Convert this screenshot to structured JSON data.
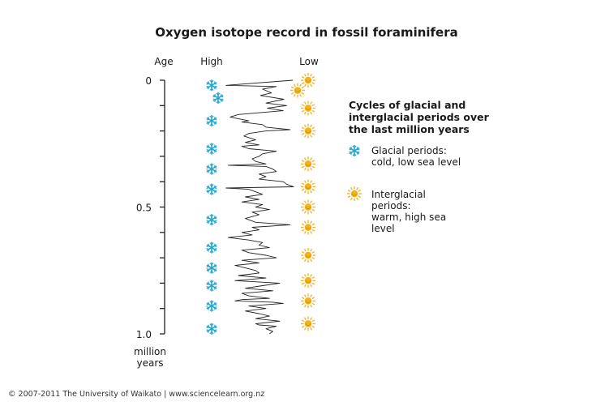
{
  "chart_data": {
    "type": "line",
    "title": "Oxygen isotope record in fossil foraminifera",
    "ylabel": "Age",
    "ylabel_unit_lines": [
      "million",
      "years"
    ],
    "y_direction": "down",
    "ylim": [
      0,
      1.0
    ],
    "y_ticks": [
      0,
      0.1,
      0.2,
      0.3,
      0.4,
      0.5,
      0.6,
      0.7,
      0.8,
      0.9,
      1.0
    ],
    "y_tick_labels": [
      {
        "value": 0,
        "label": "0"
      },
      {
        "value": 0.5,
        "label": "0.5"
      },
      {
        "value": 1.0,
        "label": "1.0"
      }
    ],
    "x_scale_labels": {
      "left": "High",
      "right": "Low"
    },
    "xlim": [
      0,
      1
    ],
    "grid": false,
    "series": [
      {
        "points": [
          [
            0.0,
            0.99
          ],
          [
            0.02,
            0.02
          ],
          [
            0.025,
            0.75
          ],
          [
            0.035,
            0.55
          ],
          [
            0.05,
            0.68
          ],
          [
            0.06,
            0.52
          ],
          [
            0.075,
            0.86
          ],
          [
            0.09,
            0.6
          ],
          [
            0.1,
            0.9
          ],
          [
            0.11,
            0.62
          ],
          [
            0.12,
            0.85
          ],
          [
            0.135,
            0.2
          ],
          [
            0.145,
            0.08
          ],
          [
            0.16,
            0.35
          ],
          [
            0.165,
            0.25
          ],
          [
            0.175,
            0.55
          ],
          [
            0.185,
            0.6
          ],
          [
            0.195,
            0.95
          ],
          [
            0.2,
            0.6
          ],
          [
            0.21,
            0.35
          ],
          [
            0.22,
            0.28
          ],
          [
            0.235,
            0.45
          ],
          [
            0.245,
            0.3
          ],
          [
            0.255,
            0.5
          ],
          [
            0.26,
            0.25
          ],
          [
            0.27,
            0.35
          ],
          [
            0.28,
            0.75
          ],
          [
            0.29,
            0.55
          ],
          [
            0.3,
            0.5
          ],
          [
            0.31,
            0.4
          ],
          [
            0.32,
            0.45
          ],
          [
            0.33,
            0.6
          ],
          [
            0.335,
            0.05
          ],
          [
            0.34,
            0.6
          ],
          [
            0.35,
            0.7
          ],
          [
            0.36,
            0.75
          ],
          [
            0.37,
            0.5
          ],
          [
            0.38,
            0.6
          ],
          [
            0.39,
            0.5
          ],
          [
            0.4,
            0.85
          ],
          [
            0.41,
            0.9
          ],
          [
            0.42,
            1.0
          ],
          [
            0.425,
            0.02
          ],
          [
            0.43,
            0.35
          ],
          [
            0.44,
            0.45
          ],
          [
            0.45,
            0.55
          ],
          [
            0.46,
            0.3
          ],
          [
            0.47,
            0.5
          ],
          [
            0.48,
            0.25
          ],
          [
            0.49,
            0.55
          ],
          [
            0.5,
            0.45
          ],
          [
            0.51,
            0.65
          ],
          [
            0.52,
            0.4
          ],
          [
            0.53,
            0.5
          ],
          [
            0.545,
            0.3
          ],
          [
            0.56,
            0.45
          ],
          [
            0.57,
            0.95
          ],
          [
            0.58,
            0.4
          ],
          [
            0.59,
            0.5
          ],
          [
            0.6,
            0.25
          ],
          [
            0.61,
            0.4
          ],
          [
            0.62,
            0.05
          ],
          [
            0.63,
            0.35
          ],
          [
            0.64,
            0.55
          ],
          [
            0.65,
            0.5
          ],
          [
            0.66,
            0.65
          ],
          [
            0.67,
            0.25
          ],
          [
            0.68,
            0.35
          ],
          [
            0.69,
            0.6
          ],
          [
            0.7,
            0.75
          ],
          [
            0.71,
            0.25
          ],
          [
            0.72,
            0.5
          ],
          [
            0.73,
            0.15
          ],
          [
            0.74,
            0.3
          ],
          [
            0.75,
            0.45
          ],
          [
            0.76,
            0.5
          ],
          [
            0.77,
            0.2
          ],
          [
            0.78,
            0.6
          ],
          [
            0.79,
            0.15
          ],
          [
            0.8,
            0.8
          ],
          [
            0.81,
            0.55
          ],
          [
            0.82,
            0.3
          ],
          [
            0.83,
            0.7
          ],
          [
            0.84,
            0.25
          ],
          [
            0.85,
            0.35
          ],
          [
            0.86,
            0.65
          ],
          [
            0.865,
            0.25
          ],
          [
            0.87,
            0.15
          ],
          [
            0.875,
            0.7
          ],
          [
            0.88,
            0.85
          ],
          [
            0.89,
            0.35
          ],
          [
            0.9,
            0.6
          ],
          [
            0.91,
            0.3
          ],
          [
            0.92,
            0.5
          ],
          [
            0.93,
            0.65
          ],
          [
            0.94,
            0.45
          ],
          [
            0.95,
            0.8
          ],
          [
            0.96,
            0.45
          ],
          [
            0.965,
            0.5
          ],
          [
            0.97,
            0.75
          ],
          [
            0.98,
            0.6
          ],
          [
            0.99,
            0.7
          ],
          [
            1.0,
            0.65
          ]
        ]
      }
    ],
    "glacial_markers": [
      0.02,
      0.07,
      0.16,
      0.27,
      0.35,
      0.43,
      0.55,
      0.66,
      0.74,
      0.81,
      0.89,
      0.98
    ],
    "interglacial_markers": [
      0.0,
      0.04,
      0.11,
      0.2,
      0.33,
      0.42,
      0.5,
      0.58,
      0.69,
      0.79,
      0.87,
      0.96
    ],
    "legend": {
      "placement": "right",
      "title_lines": [
        "Cycles of glacial and",
        "interglacial periods over",
        "the last million years"
      ],
      "entries": [
        {
          "marker": "snowflake-icon",
          "color": "#27a7cf",
          "lines": [
            "Glacial periods:",
            "cold, low sea level"
          ]
        },
        {
          "marker": "sun-icon",
          "color": "#f3b21b",
          "lines": [
            "Interglacial",
            "periods:",
            "warm, high sea",
            "level"
          ]
        }
      ]
    }
  },
  "colors": {
    "glacial": "#27a7cf",
    "interglacial": "#f3b21b",
    "sun_core": "#f3b21b",
    "line": "#222222",
    "axis": "#222222"
  },
  "footer": {
    "text": "© 2007-2011 The University of Waikato | www.sciencelearn.org.nz"
  }
}
